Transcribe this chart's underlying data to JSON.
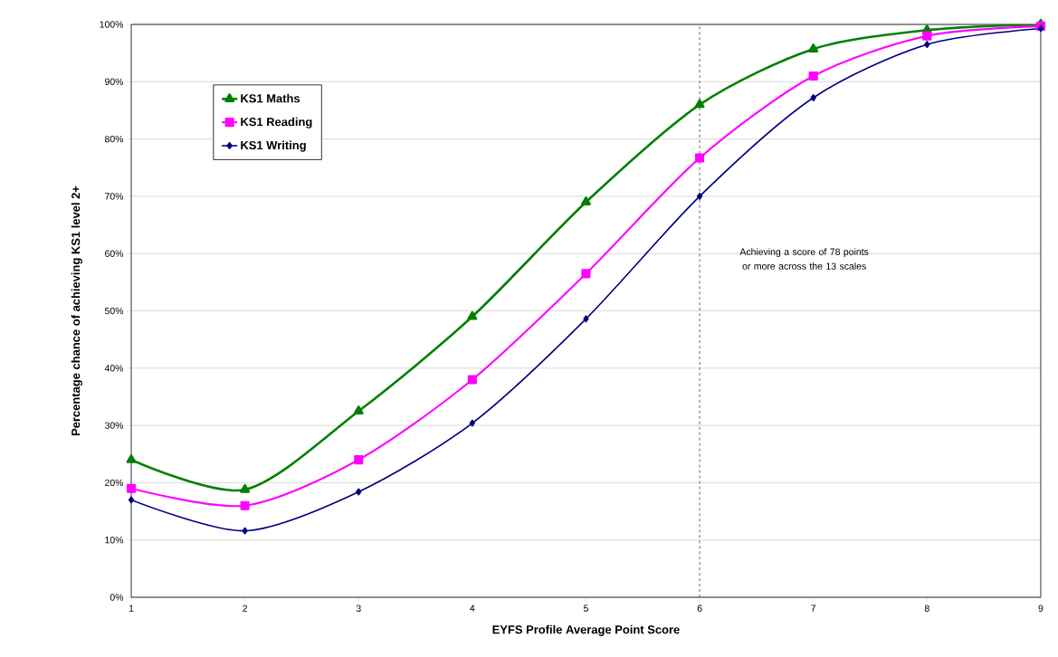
{
  "chart_data": {
    "type": "line",
    "xlabel": "EYFS Profile Average Point Score",
    "ylabel": "Percentage chance of achieving KS1 level 2+",
    "x": [
      1,
      2,
      3,
      4,
      5,
      6,
      7,
      8,
      9
    ],
    "series": [
      {
        "name": "KS1 Maths",
        "color": "#008000",
        "marker": "triangle",
        "values": [
          24,
          18.8,
          32.5,
          49,
          69,
          86,
          95.7,
          99,
          100
        ]
      },
      {
        "name": "KS1 Reading",
        "color": "#ff00ff",
        "marker": "square",
        "values": [
          19,
          16,
          24,
          38,
          56.5,
          76.7,
          91,
          98,
          99.7
        ]
      },
      {
        "name": "KS1 Writing",
        "color": "#000080",
        "marker": "diamond",
        "values": [
          17,
          11.6,
          18.4,
          30.4,
          48.6,
          70,
          87.2,
          96.5,
          99.3
        ]
      }
    ],
    "xlim": [
      1,
      9
    ],
    "xticks": [
      1,
      2,
      3,
      4,
      5,
      6,
      7,
      8,
      9
    ],
    "ylim": [
      0,
      100
    ],
    "yticks": [
      {
        "value": 0,
        "label": "0%"
      },
      {
        "value": 10,
        "label": "10%"
      },
      {
        "value": 20,
        "label": "20%"
      },
      {
        "value": 30,
        "label": "30%"
      },
      {
        "value": 40,
        "label": "40%"
      },
      {
        "value": 50,
        "label": "50%"
      },
      {
        "value": 60,
        "label": "60%"
      },
      {
        "value": 70,
        "label": "70%"
      },
      {
        "value": 80,
        "label": "80%"
      },
      {
        "value": 90,
        "label": "90%"
      },
      {
        "value": 100,
        "label": "100%"
      }
    ],
    "ref_lines": [
      {
        "axis": "x",
        "value": 6,
        "color": "#404040",
        "line_style": "dashed"
      }
    ],
    "annotations": [
      "Achieving a score of 78 points or more across the 13 scales"
    ],
    "grid": "y",
    "legend": "top left",
    "line_style": "solid"
  }
}
